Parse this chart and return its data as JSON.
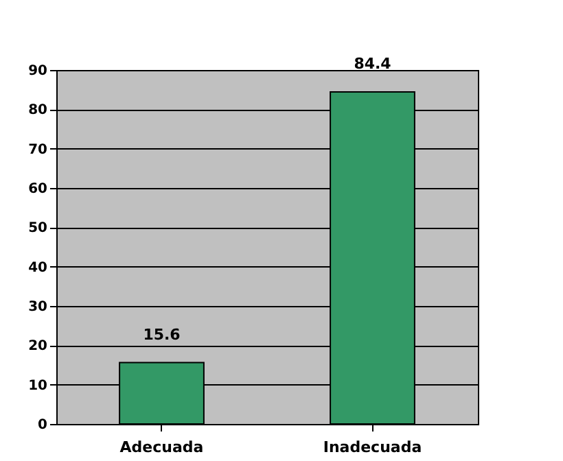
{
  "chart_data": {
    "type": "bar",
    "categories": [
      "Adecuada",
      "Inadecuada"
    ],
    "values": [
      15.6,
      84.4
    ],
    "color": "#339966",
    "ylim": [
      0,
      90
    ],
    "yticks": [
      0,
      10,
      20,
      30,
      40,
      50,
      60,
      70,
      80,
      90
    ],
    "grid": "y",
    "data_labels": true
  }
}
